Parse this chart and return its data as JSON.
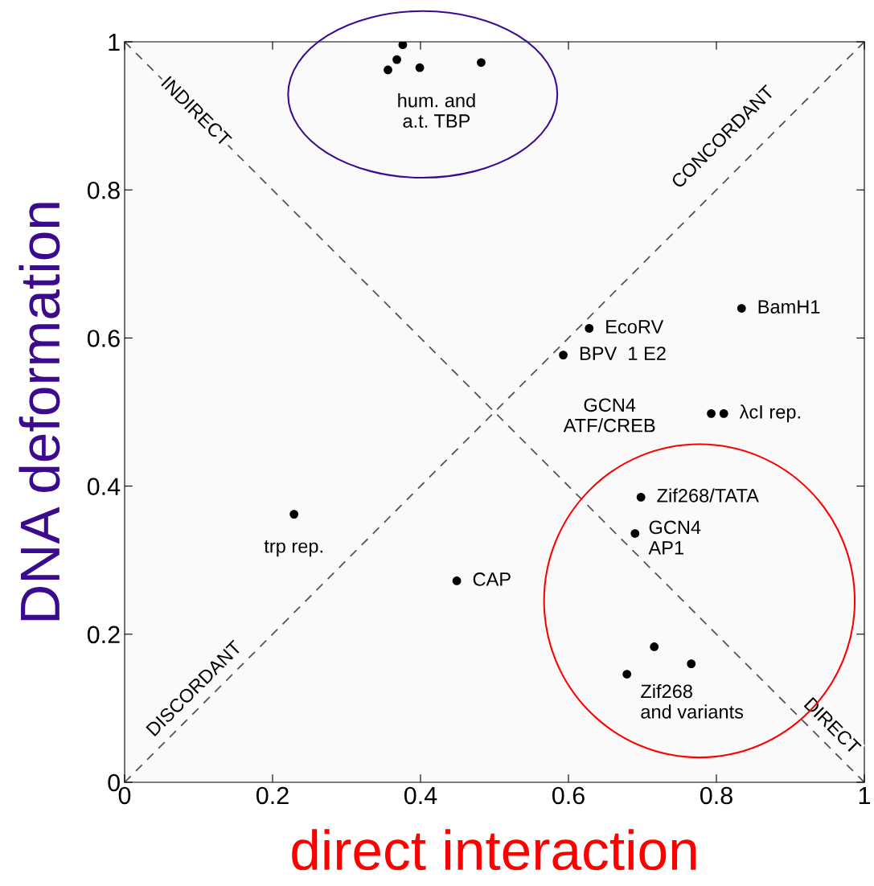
{
  "chart_data": {
    "type": "scatter",
    "xlabel": "direct interaction",
    "ylabel": "DNA deformation",
    "xlim": [
      0,
      1
    ],
    "ylim": [
      0,
      1
    ],
    "xticks": [
      0,
      0.2,
      0.4,
      0.6,
      0.8,
      1
    ],
    "yticks": [
      0,
      0.2,
      0.4,
      0.6,
      0.8,
      1
    ],
    "grid": false,
    "legend": false,
    "series": [
      {
        "type": "line",
        "color": "#555555",
        "line_style": "dashed",
        "marker": "none",
        "x": [
          0,
          1
        ],
        "values": [
          0,
          1
        ]
      },
      {
        "type": "line",
        "color": "#555555",
        "line_style": "dashed",
        "marker": "none",
        "x": [
          0,
          1
        ],
        "values": [
          1,
          0
        ]
      },
      {
        "color": "#000000",
        "marker": "circle",
        "x": [
          0.356,
          0.368,
          0.376,
          0.399,
          0.482,
          0.834,
          0.628,
          0.593,
          0.793,
          0.81,
          0.698,
          0.69,
          0.229,
          0.449,
          0.716,
          0.766,
          0.679
        ],
        "values": [
          0.962,
          0.976,
          0.996,
          0.965,
          0.972,
          0.64,
          0.613,
          0.577,
          0.498,
          0.498,
          0.385,
          0.336,
          0.362,
          0.272,
          0.183,
          0.16,
          0.146
        ]
      }
    ],
    "annotations": [
      {
        "text": "hum. and\na.t. TBP",
        "x": 0.399,
        "y": 0.965
      },
      {
        "text": "EcoRV",
        "x": 0.628,
        "y": 0.613
      },
      {
        "text": "BPV  1 E2",
        "x": 0.593,
        "y": 0.577
      },
      {
        "text": "BamH1",
        "x": 0.834,
        "y": 0.64
      },
      {
        "text": "GCN4\nATF/CREB",
        "x": 0.793,
        "y": 0.498
      },
      {
        "text": "λcI rep.",
        "x": 0.81,
        "y": 0.498
      },
      {
        "text": "Zif268/TATA",
        "x": 0.698,
        "y": 0.385
      },
      {
        "text": "GCN4\nAP1",
        "x": 0.69,
        "y": 0.336
      },
      {
        "text": "trp rep.",
        "x": 0.229,
        "y": 0.362
      },
      {
        "text": "CAP",
        "x": 0.449,
        "y": 0.272
      },
      {
        "text": "Zif268\nand variants",
        "x": 0.679,
        "y": 0.146
      },
      {
        "text": "INDIRECT",
        "x": 0.08,
        "y": 0.92
      },
      {
        "text": "CONCORDANT",
        "x": 0.84,
        "y": 0.84
      },
      {
        "text": "DISCORDANT",
        "x": 0.11,
        "y": 0.11
      },
      {
        "text": "DIRECT",
        "x": 0.94,
        "y": 0.06
      }
    ]
  }
}
